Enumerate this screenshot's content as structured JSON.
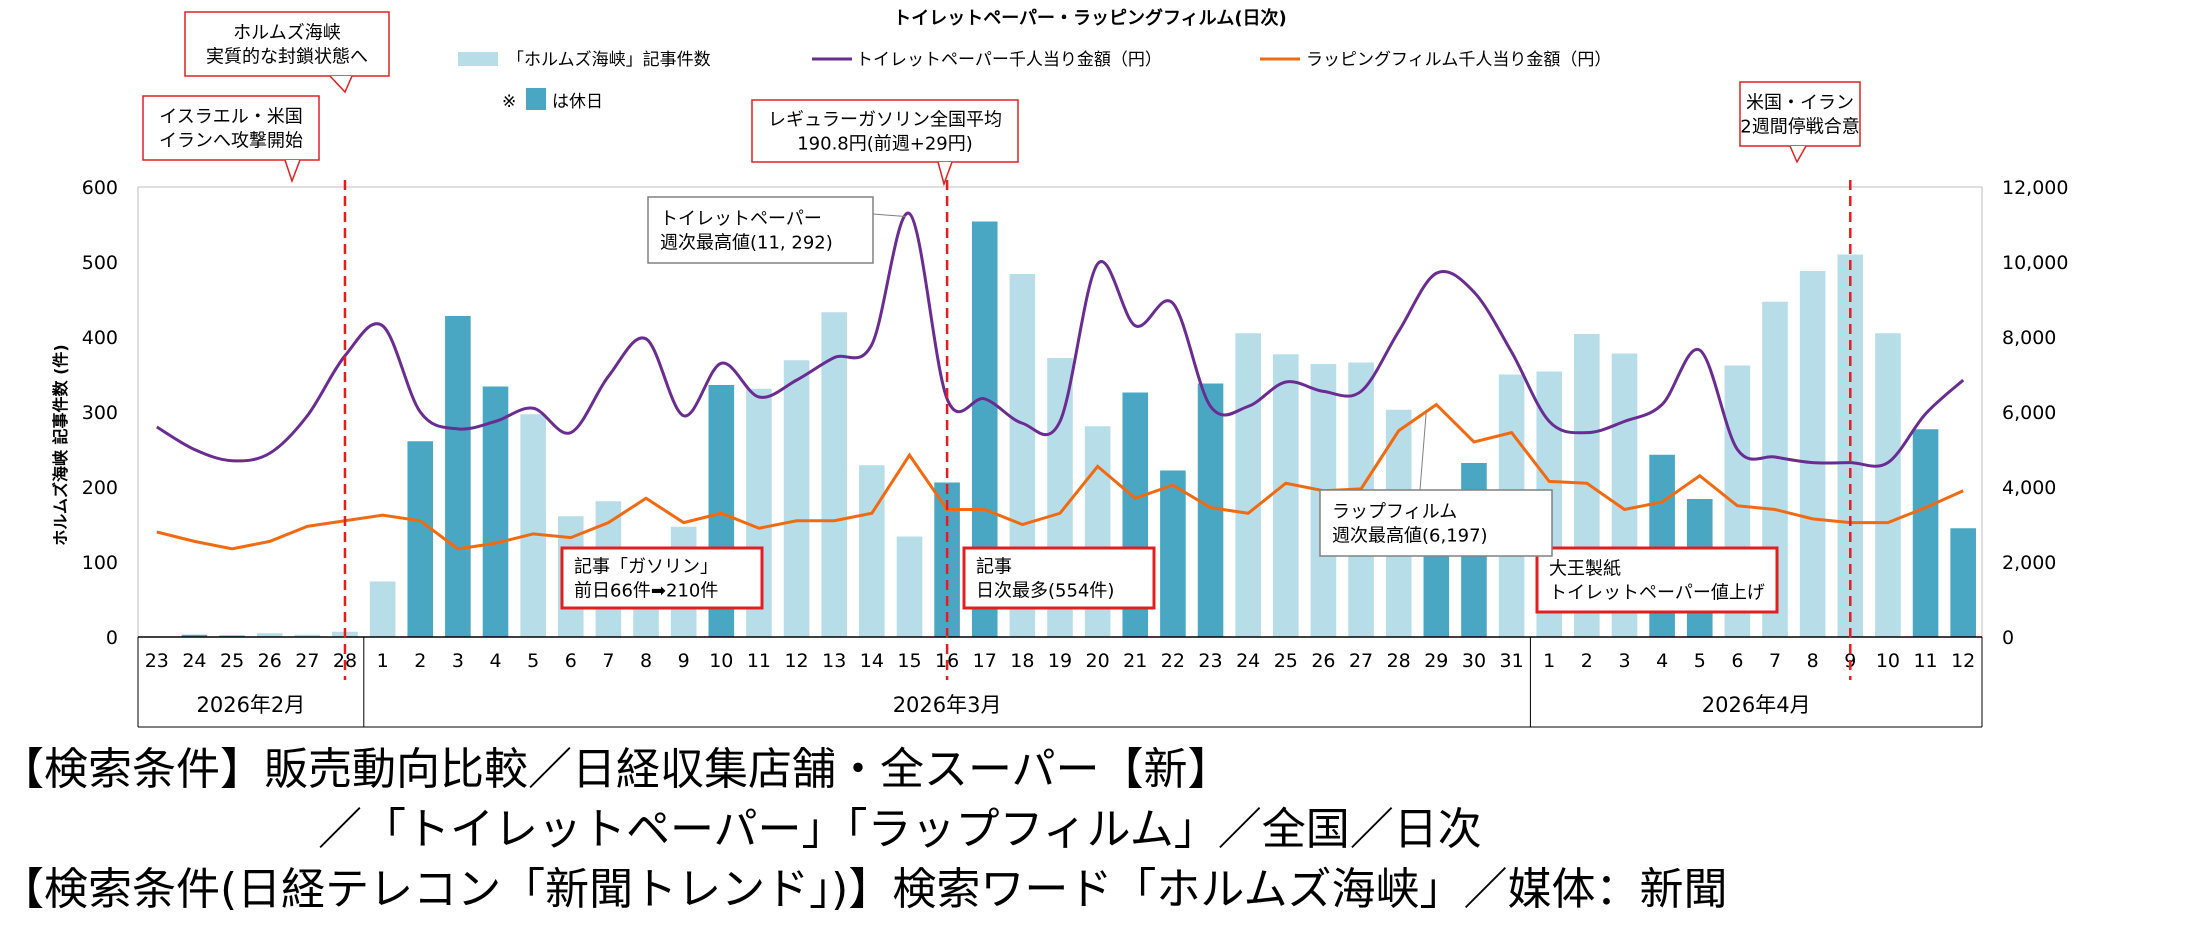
{
  "chart_data": {
    "type": "bar",
    "title": "トイレットペーパー・ラッピングフィルム(日次)",
    "ylabel": "ホルムズ海峡 記事件数 (件)",
    "ylim": [
      0,
      600
    ],
    "y_ticks": [
      "0",
      "100",
      "200",
      "300",
      "400",
      "500",
      "600"
    ],
    "y2lim": [
      0,
      12000
    ],
    "y2_ticks": [
      "0",
      "2,000",
      "4,000",
      "6,000",
      "8,000",
      "10,000",
      "12,000"
    ],
    "categories": [
      "23",
      "24",
      "25",
      "26",
      "27",
      "28",
      "1",
      "2",
      "3",
      "4",
      "5",
      "6",
      "7",
      "8",
      "9",
      "10",
      "11",
      "12",
      "13",
      "14",
      "15",
      "16",
      "17",
      "18",
      "19",
      "20",
      "21",
      "22",
      "23",
      "24",
      "25",
      "26",
      "27",
      "28",
      "29",
      "30",
      "31",
      "1",
      "2",
      "3",
      "4",
      "5",
      "6",
      "7",
      "8",
      "9",
      "10",
      "11",
      "12"
    ],
    "month_groups": [
      {
        "label": "2026年2月",
        "count": 6
      },
      {
        "label": "2026年3月",
        "count": 31
      },
      {
        "label": "2026年4月",
        "count": 12
      }
    ],
    "legend": {
      "bars": "「ホルムズ海峡」記事件数",
      "toilet": "トイレットペーパー千人当り金額（円）",
      "wrap": "ラッピングフィルム千人当り金額（円）",
      "holiday_prefix": "※",
      "holiday_suffix": "は休日"
    },
    "series": [
      {
        "name": "「ホルムズ海峡」記事件数",
        "axis": "left",
        "kind": "bar",
        "values": [
          0,
          3,
          2,
          5,
          3,
          7,
          74,
          261,
          428,
          334,
          297,
          161,
          181,
          45,
          147,
          336,
          331,
          369,
          433,
          229,
          134,
          206,
          554,
          484,
          372,
          281,
          326,
          222,
          338,
          405,
          377,
          364,
          366,
          303,
          157,
          232,
          350,
          354,
          404,
          378,
          243,
          184,
          362,
          447,
          488,
          510,
          405,
          277,
          145
        ]
      },
      {
        "name": "トイレットペーパー千人当り金額（円）",
        "axis": "right",
        "kind": "line",
        "values": [
          5600,
          5000,
          4700,
          4900,
          5900,
          7500,
          8300,
          6000,
          5550,
          5750,
          6100,
          5450,
          6950,
          7950,
          5900,
          7300,
          6400,
          6850,
          7450,
          7800,
          11292,
          6350,
          6350,
          5700,
          5750,
          9950,
          8300,
          8900,
          6150,
          6150,
          6800,
          6550,
          6550,
          8150,
          9700,
          9200,
          7600,
          5750,
          5450,
          5750,
          6200,
          7650,
          5000,
          4800,
          4650,
          4650,
          4650,
          5950,
          6850
        ]
      },
      {
        "name": "ラッピングフィルム千人当り金額（円）",
        "axis": "right",
        "kind": "line",
        "values": [
          2800,
          2550,
          2350,
          2550,
          2950,
          3100,
          3250,
          3100,
          2350,
          2500,
          2750,
          2650,
          3050,
          3700,
          3050,
          3300,
          2900,
          3100,
          3100,
          3300,
          4850,
          3400,
          3400,
          3000,
          3300,
          4550,
          3700,
          4050,
          3450,
          3300,
          4100,
          3900,
          3950,
          5500,
          6197,
          5200,
          5450,
          4150,
          4100,
          3400,
          3600,
          4300,
          3500,
          3400,
          3150,
          3050,
          3050,
          3450,
          3900
        ]
      }
    ],
    "holidays": [
      1,
      2,
      7,
      8,
      9,
      15,
      21,
      22,
      26,
      27,
      28,
      34,
      35,
      40,
      41,
      47,
      48
    ],
    "vlines_after_index": [
      5,
      21,
      45
    ],
    "callouts_red": [
      {
        "at_index": 5,
        "lines": [
          "イスラエル・米国",
          "イランへ攻撃開始"
        ]
      },
      {
        "at_index": 5,
        "lines": [
          "ホルムズ海峡",
          "実質的な封鎖状態へ"
        ]
      },
      {
        "at_index": 21,
        "lines": [
          "レギュラーガソリン全国平均",
          "190.8円(前週+29円)"
        ]
      },
      {
        "at_index": 45,
        "lines": [
          "米国・イラン",
          "2週間停戦合意"
        ]
      },
      {
        "at_index": 15,
        "lines": [
          "記事「ガソリン」",
          "前日66件➡210件"
        ]
      },
      {
        "at_index": 22,
        "lines": [
          "記事",
          "日次最多(554件)"
        ]
      },
      {
        "at_index": 37,
        "lines": [
          "大王製紙",
          "トイレットペーパー値上げ"
        ]
      }
    ],
    "callouts_gray": [
      {
        "at_index": 20,
        "lines": [
          "トイレットペーパー",
          "週次最高値(11, 292)"
        ]
      },
      {
        "at_index": 34,
        "lines": [
          "ラップフィルム",
          "週次最高値(6,197)"
        ]
      }
    ]
  },
  "search_conditions": [
    "【検索条件】販売動向比較／日経収集店舗・全スーパー【新】",
    "／「トイレットペーパー」「ラップフィルム」／全国／日次",
    "【検索条件(日経テレコン「新聞トレンド」)】検索ワード「ホルムズ海峡」／媒体：新聞"
  ],
  "colors": {
    "bar": "#b7dde9",
    "bar_holiday": "#4aa7c4",
    "toilet": "#6a2c91",
    "wrap": "#f26a10",
    "callout": "#e02020",
    "gray_box": "#808080",
    "axis_text": "#000000",
    "grid": "#d9d9d9"
  }
}
